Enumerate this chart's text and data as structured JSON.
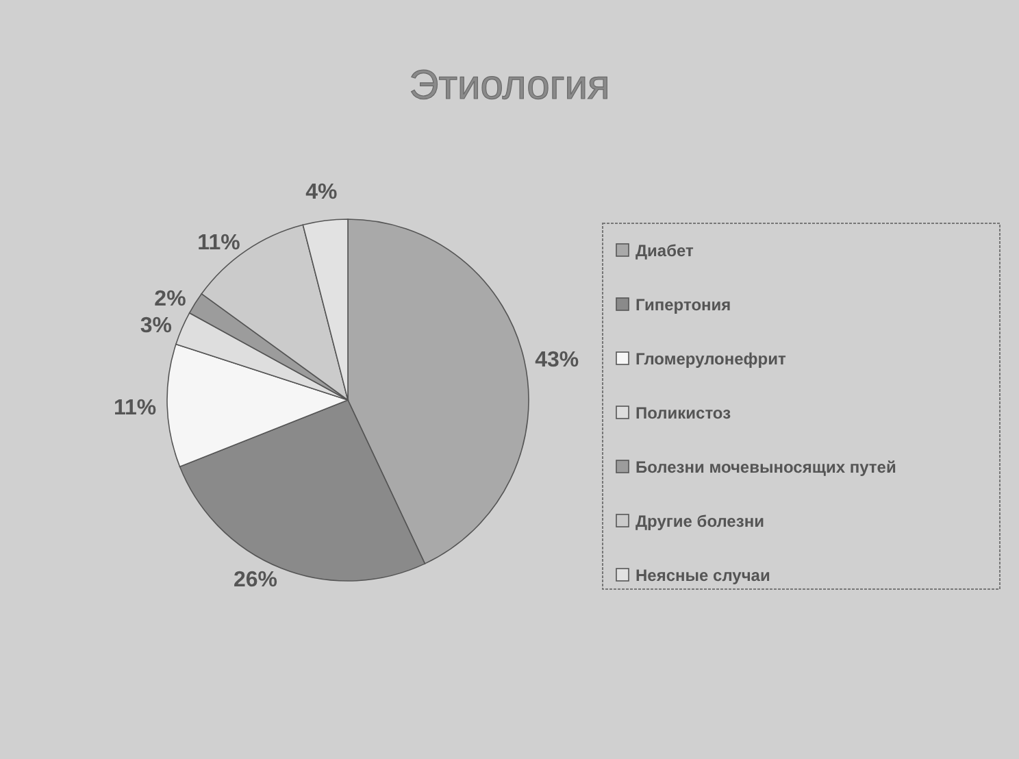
{
  "chart_data": {
    "type": "pie",
    "title": "Этиология",
    "categories": [
      "Диабет",
      "Гипертония",
      "Гломерулонефрит",
      "Поликистоз",
      "Болезни мочевыносящих путей",
      "Другие болезни",
      "Неясные случаи"
    ],
    "values": [
      43,
      26,
      11,
      3,
      2,
      11,
      4
    ],
    "colors": [
      "#a9a9a9",
      "#8a8a8a",
      "#f6f6f6",
      "#dedede",
      "#9c9c9c",
      "#cbcbcb",
      "#e2e2e2"
    ],
    "value_labels": [
      "43%",
      "26%",
      "11%",
      "3%",
      "2%",
      "11%",
      "4%"
    ],
    "legend": "right"
  }
}
